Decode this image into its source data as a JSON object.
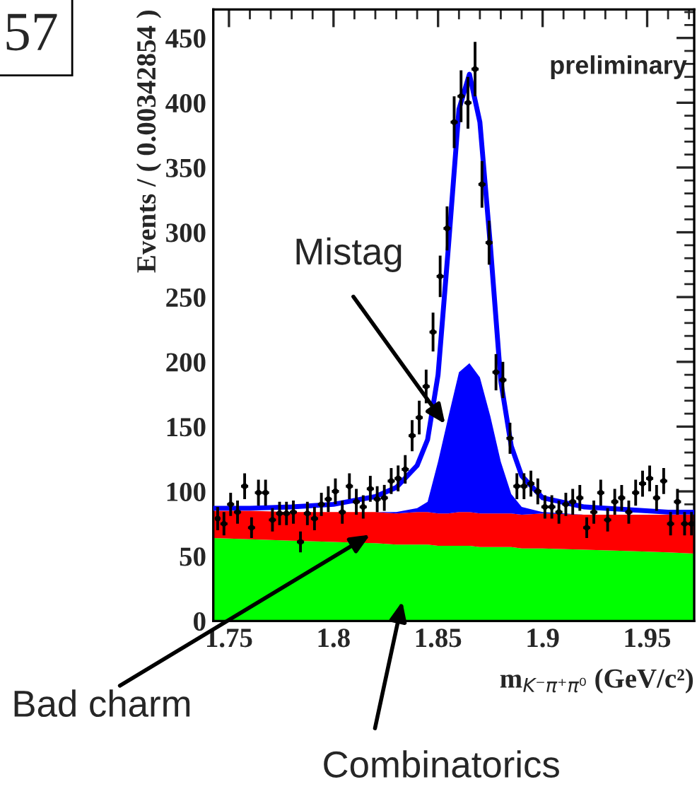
{
  "chart_data": {
    "type": "area",
    "stacked": true,
    "xlabel": "m$_{K⁻π⁺π⁰}$ (GeV/c²)",
    "ylabel": "Events / ( 0.00342854 )",
    "xlim": [
      1.7425,
      1.9725
    ],
    "xticks": [
      1.75,
      1.8,
      1.85,
      1.9,
      1.95
    ],
    "ylim": [
      0,
      472
    ],
    "yticks": [
      0,
      50,
      100,
      150,
      200,
      250,
      300,
      350,
      400,
      450
    ],
    "grid": false,
    "legend": false,
    "x": [
      1.7425,
      1.76,
      1.78,
      1.8,
      1.82,
      1.83,
      1.84,
      1.845,
      1.85,
      1.855,
      1.86,
      1.865,
      1.87,
      1.875,
      1.88,
      1.885,
      1.89,
      1.9,
      1.92,
      1.94,
      1.96,
      1.9725
    ],
    "series": [
      {
        "color": "#00ff00",
        "values": [
          64,
          63,
          62,
          61,
          60,
          59,
          59,
          59,
          58,
          58,
          58,
          58,
          57,
          57,
          57,
          57,
          56,
          56,
          55,
          54,
          53,
          52
        ]
      },
      {
        "color": "#ff0000",
        "values": [
          21,
          22,
          22,
          23,
          24,
          24,
          25,
          25,
          25,
          25,
          26,
          26,
          26,
          26,
          26,
          26,
          26,
          27,
          27,
          28,
          29,
          30
        ]
      },
      {
        "color": "#0000ff",
        "values": [
          0,
          0,
          0,
          0,
          0,
          1,
          3,
          8,
          40,
          75,
          108,
          115,
          105,
          75,
          40,
          15,
          6,
          1,
          0,
          0,
          0,
          0
        ]
      },
      {
        "type": "line",
        "color": "#0000ff",
        "values": [
          87,
          87,
          88,
          90,
          96,
          103,
          120,
          140,
          190,
          290,
          395,
          422,
          385,
          290,
          185,
          135,
          112,
          95,
          88,
          86,
          84,
          84
        ]
      },
      {
        "type": "scatter",
        "marker": "circle",
        "color": "#000000",
        "x": [
          1.7446,
          1.7476,
          1.7508,
          1.7541,
          1.7575,
          1.7608,
          1.7641,
          1.7675,
          1.7708,
          1.7742,
          1.7775,
          1.7808,
          1.7842,
          1.7875,
          1.7909,
          1.7942,
          1.7975,
          1.8009,
          1.8042,
          1.8076,
          1.8109,
          1.8142,
          1.8176,
          1.8209,
          1.8243,
          1.8276,
          1.8309,
          1.8343,
          1.8376,
          1.841,
          1.8443,
          1.8476,
          1.851,
          1.8543,
          1.8577,
          1.861,
          1.8643,
          1.8677,
          1.871,
          1.8744,
          1.8777,
          1.881,
          1.8844,
          1.8877,
          1.8911,
          1.8944,
          1.8977,
          1.9011,
          1.9044,
          1.9078,
          1.9111,
          1.9144,
          1.9178,
          1.9211,
          1.9245,
          1.9278,
          1.9311,
          1.9345,
          1.9378,
          1.9412,
          1.9445,
          1.9478,
          1.9512,
          1.9545,
          1.9579,
          1.9612,
          1.9645,
          1.9679,
          1.9712
        ],
        "values": [
          79,
          75,
          90,
          84,
          104,
          72,
          99,
          99,
          78,
          83,
          83,
          84,
          61,
          83,
          79,
          90,
          94,
          100,
          84,
          104,
          92,
          88,
          102,
          94,
          95,
          108,
          110,
          117,
          143,
          157,
          181,
          223,
          266,
          303,
          385,
          405,
          400,
          426,
          337,
          292,
          192,
          186,
          141,
          104,
          104,
          106,
          100,
          88,
          88,
          84,
          90,
          92,
          95,
          72,
          84,
          99,
          78,
          92,
          95,
          84,
          99,
          106,
          110,
          95,
          108,
          75,
          92,
          75,
          75
        ],
        "errors": [
          9,
          9,
          9,
          9,
          10,
          8,
          10,
          10,
          9,
          9,
          9,
          9,
          8,
          9,
          9,
          9,
          10,
          10,
          9,
          10,
          10,
          9,
          10,
          10,
          10,
          10,
          10,
          11,
          12,
          13,
          13,
          15,
          16,
          17,
          20,
          20,
          20,
          21,
          18,
          17,
          14,
          14,
          12,
          10,
          10,
          10,
          10,
          9,
          9,
          9,
          9,
          10,
          10,
          8,
          9,
          10,
          9,
          10,
          10,
          9,
          10,
          10,
          10,
          10,
          10,
          9,
          10,
          9,
          9
        ],
        "xerrors": [
          null,
          0.0017,
          0.0017,
          0.0017,
          0.0017,
          0.0017,
          0.0017,
          0.0017,
          0.0017,
          0.0017,
          0.0017,
          0.0017,
          0.0017,
          0.0017,
          0.0017,
          0.0017,
          0.0017,
          0.0017,
          0.0017,
          0.0017,
          0.0017,
          0.0017,
          0.0017,
          0.0017,
          0.0017,
          0.0017,
          0.0017,
          0.0017,
          0.0017,
          0.0017,
          0.0017,
          0.0017,
          0.0017,
          0.0017,
          0.0017,
          0.0017,
          0.0017,
          0.0017,
          0.0017,
          0.0017,
          0.0017,
          0.0017,
          0.0017,
          0.0017,
          0.0017,
          0.0017,
          0.0017,
          0.0017,
          0.0017,
          0.0017,
          0.0017,
          0.0017,
          0.0017,
          0.0017,
          0.0017,
          0.0017,
          0.0017,
          0.0017,
          0.0017,
          0.0017,
          0.0017,
          0.0017,
          0.0017,
          0.0017,
          0.0017,
          0.0017,
          0.0017,
          0.0017,
          0.0017
        ]
      }
    ],
    "annotations": [
      {
        "text": "Mistag",
        "x": 1.8534,
        "y": 152
      },
      "Bad charm",
      "Combinatorics",
      "preliminary",
      "57"
    ]
  }
}
